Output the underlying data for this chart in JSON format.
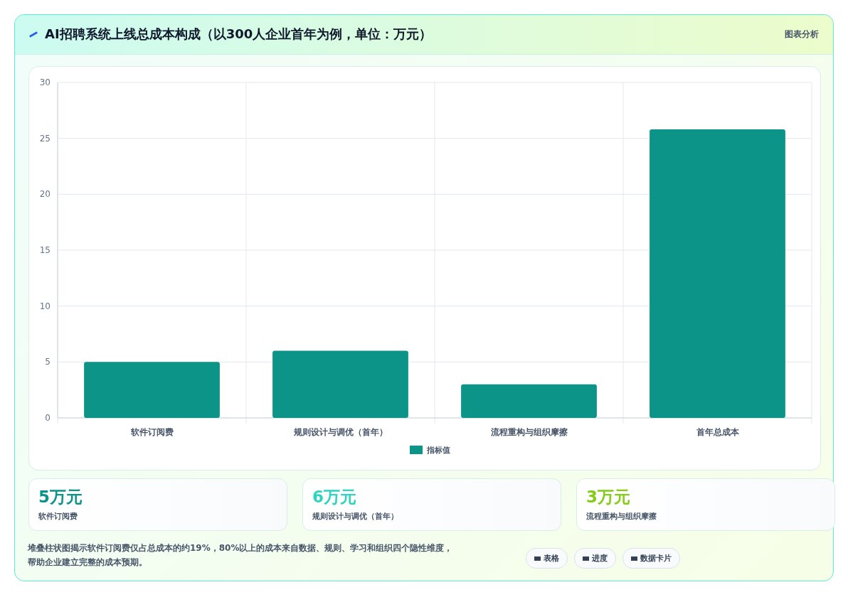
{
  "chart_data": [
    {
      "type": "bar",
      "title": "AI招聘系统上线总成本构成（以300人企业首年为例，单位：万元）",
      "categories": [
        "软件订阅费",
        "规则设计与调优（首年）",
        "流程重构与组织摩擦",
        "首年总成本"
      ],
      "series": [
        {
          "name": "指标值",
          "color": "#0d9488",
          "values": [
            5,
            6,
            3,
            25.8
          ]
        }
      ],
      "ylim": [
        0,
        30
      ],
      "yticks": [
        0,
        5,
        10,
        15,
        20,
        25,
        30
      ],
      "grid": true,
      "legend": "bottom",
      "annotations": [
        "图表分析",
        "堆叠柱状图揭示软件订阅费仅占总成本的约19%，80%以上的成本来自数据、规则、学习和组织四个隐性维度，帮助企业建立完整的成本预期。",
        "表格",
        "进度",
        "数据卡片"
      ]
    },
    {
      "type": "other",
      "annotations": [
        "5万元",
        "软件订阅费",
        "6万元",
        "规则设计与调优（首年）",
        "3万元",
        "流程重构与组织摩擦"
      ]
    }
  ]
}
